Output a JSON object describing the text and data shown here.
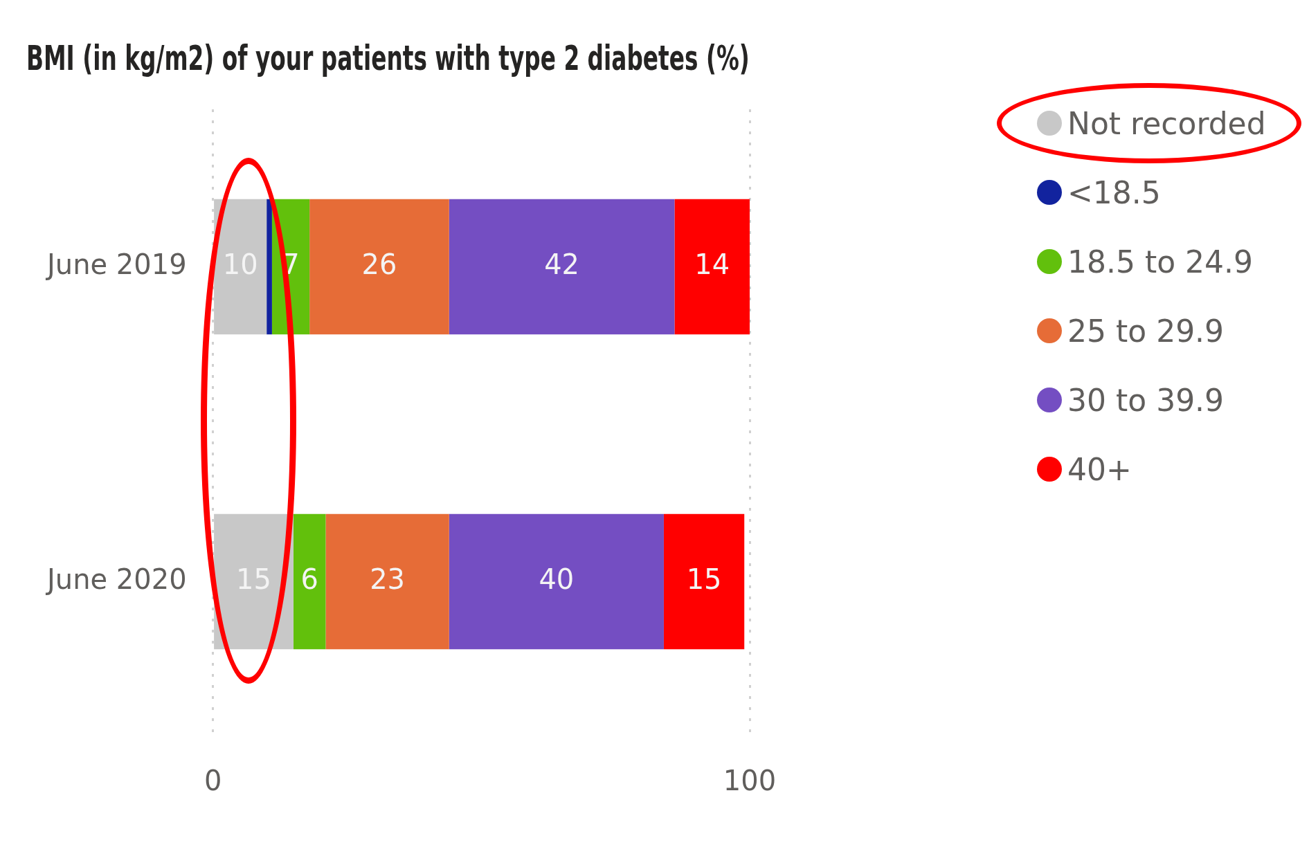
{
  "chart_data": {
    "type": "bar",
    "title": "BMI (in kg/m2) of your patients with type 2 diabetes (%)",
    "orientation": "horizontal",
    "stacked": true,
    "categories": [
      "June 2019",
      "June 2020"
    ],
    "series": [
      {
        "name": "Not recorded",
        "color": "#c8c8c8",
        "values": [
          10,
          15
        ],
        "value_labels": [
          "10",
          "15"
        ]
      },
      {
        "name": "<18.5",
        "color": "#12239e",
        "values": [
          1,
          null
        ],
        "value_labels": [
          null,
          null
        ]
      },
      {
        "name": "18.5 to 24.9",
        "color": "#62c00c",
        "values": [
          7,
          6
        ],
        "value_labels": [
          "7",
          "6"
        ]
      },
      {
        "name": "25 to 29.9",
        "color": "#e66c37",
        "values": [
          26,
          23
        ],
        "value_labels": [
          "26",
          "23"
        ]
      },
      {
        "name": "30 to 39.9",
        "color": "#744ec2",
        "values": [
          42,
          40
        ],
        "value_labels": [
          "42",
          "40"
        ]
      },
      {
        "name": "40+",
        "color": "#ff0000",
        "values": [
          14,
          15
        ],
        "value_labels": [
          "14",
          "15"
        ]
      }
    ],
    "xlim": [
      0,
      100
    ],
    "xticks": [
      0,
      100
    ],
    "grid": "x",
    "legend": "top right",
    "marker": "circle"
  }
}
